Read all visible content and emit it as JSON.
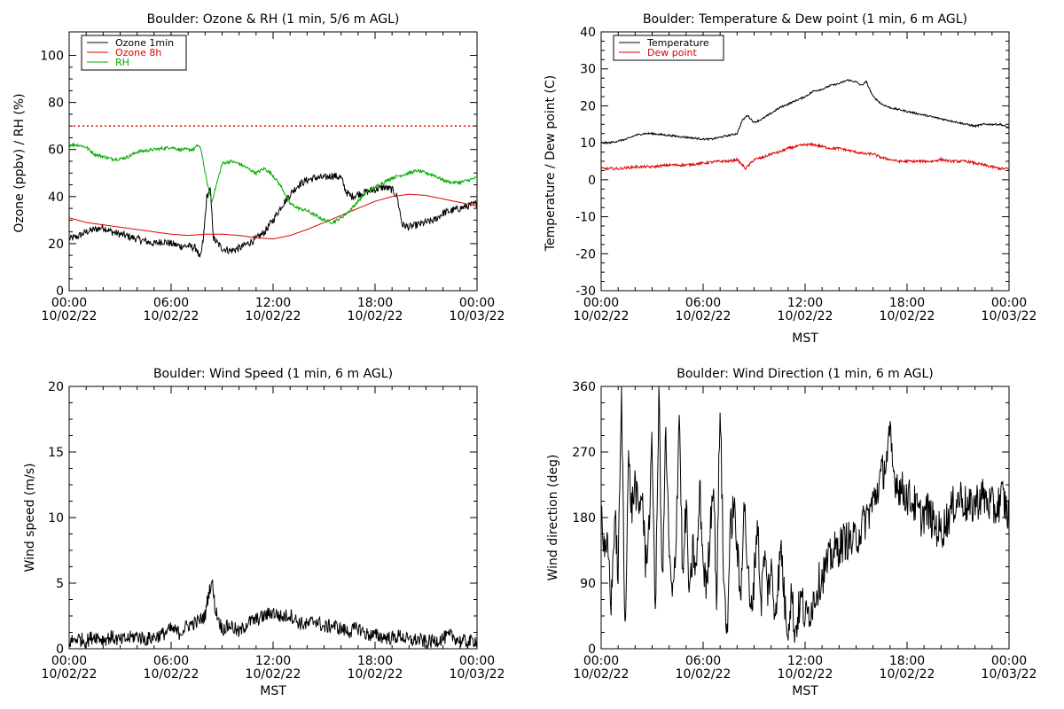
{
  "chart_data": [
    {
      "type": "line",
      "title": "Boulder: Ozone & RH (1 min, 5/6 m AGL)",
      "xlabel": "",
      "ylabel": "Ozone (ppbv) / RH (%)",
      "xlim": [
        "10/02/22 00:00",
        "10/03/22 00:00"
      ],
      "ylim": [
        0,
        110
      ],
      "x_ticks": [
        {
          "time": "00:00",
          "date": "10/02/22"
        },
        {
          "time": "06:00",
          "date": "10/02/22"
        },
        {
          "time": "12:00",
          "date": "10/02/22"
        },
        {
          "time": "18:00",
          "date": "10/02/22"
        },
        {
          "time": "00:00",
          "date": "10/03/22"
        }
      ],
      "y_ticks": [
        0,
        20,
        40,
        60,
        80,
        100
      ],
      "legend_position": "top-left",
      "reference_line": {
        "y": 70,
        "color": "#dd0000",
        "style": "dotted"
      },
      "series": [
        {
          "name": "Ozone 1min",
          "color": "#000000",
          "x_hours": [
            0,
            0.5,
            1,
            1.5,
            2,
            2.5,
            3,
            3.5,
            4,
            4.5,
            5,
            5.5,
            6,
            6.5,
            7,
            7.5,
            7.7,
            7.9,
            8.1,
            8.3,
            8.5,
            9,
            9.5,
            10,
            10.5,
            11,
            11.5,
            12,
            12.5,
            13,
            13.5,
            14,
            14.5,
            15,
            15.5,
            16,
            16.3,
            16.6,
            17,
            17.5,
            18,
            18.5,
            19,
            19.3,
            19.6,
            20,
            20.5,
            21,
            21.5,
            22,
            22.5,
            23,
            23.5,
            24
          ],
          "values": [
            22,
            23,
            25,
            26,
            27,
            25,
            24,
            23,
            22,
            21,
            20,
            21,
            20,
            19,
            19,
            18,
            13,
            22,
            40,
            43,
            22,
            18,
            17,
            18,
            20,
            22,
            25,
            30,
            36,
            41,
            45,
            47,
            48,
            48,
            49,
            48,
            42,
            40,
            41,
            42,
            43,
            44,
            43,
            40,
            28,
            27,
            28,
            29,
            30,
            33,
            34,
            35,
            36,
            37
          ]
        },
        {
          "name": "Ozone 8h",
          "color": "#dd0000",
          "x_hours": [
            0,
            1,
            2,
            3,
            4,
            5,
            6,
            7,
            8,
            9,
            10,
            11,
            12,
            13,
            14,
            15,
            16,
            17,
            18,
            19,
            20,
            21,
            22,
            23,
            24
          ],
          "values": [
            31,
            29,
            28,
            27,
            26,
            25,
            24,
            23.5,
            24,
            24,
            23.5,
            22.5,
            22,
            23.5,
            26,
            29,
            32,
            35,
            38,
            40,
            41,
            40.5,
            39,
            37.5,
            36
          ]
        },
        {
          "name": "RH",
          "color": "#00aa00",
          "x_hours": [
            0,
            0.5,
            1,
            1.5,
            2,
            2.5,
            3,
            3.5,
            4,
            5,
            6,
            6.5,
            7,
            7.3,
            7.6,
            7.8,
            8,
            8.2,
            8.4,
            9,
            9.5,
            10,
            10.5,
            11,
            11.5,
            12,
            12.5,
            13,
            13.5,
            14,
            14.5,
            15,
            15.5,
            16,
            16.5,
            17,
            17.5,
            18,
            18.5,
            19,
            19.5,
            20,
            20.5,
            21,
            21.5,
            22,
            22.5,
            23,
            23.5,
            24
          ],
          "values": [
            62,
            62,
            61,
            58,
            57,
            56,
            56,
            57,
            59,
            60,
            61,
            60,
            60,
            60,
            62,
            59,
            50,
            43,
            38,
            54,
            55,
            54,
            52,
            50,
            52,
            49,
            44,
            37,
            35,
            34,
            32,
            30,
            29,
            31,
            34,
            38,
            42,
            44,
            46,
            48,
            49,
            50,
            51,
            50,
            49,
            47,
            46,
            46,
            47,
            48
          ]
        }
      ]
    },
    {
      "type": "line",
      "title": "Boulder: Temperature & Dew point (1 min, 6 m AGL)",
      "xlabel": "MST",
      "ylabel": "Temperature / Dew point (C)",
      "xlim": [
        "10/02/22 00:00",
        "10/03/22 00:00"
      ],
      "ylim": [
        -30,
        40
      ],
      "x_ticks": [
        {
          "time": "00:00",
          "date": "10/02/22"
        },
        {
          "time": "06:00",
          "date": "10/02/22"
        },
        {
          "time": "12:00",
          "date": "10/02/22"
        },
        {
          "time": "18:00",
          "date": "10/02/22"
        },
        {
          "time": "00:00",
          "date": "10/03/22"
        }
      ],
      "y_ticks": [
        -30,
        -20,
        -10,
        0,
        10,
        20,
        30,
        40
      ],
      "legend_position": "top-left",
      "series": [
        {
          "name": "Temperature",
          "color": "#000000",
          "x_hours": [
            0,
            0.5,
            1,
            1.5,
            2,
            2.5,
            3,
            4,
            5,
            6,
            6.5,
            7,
            7.5,
            8,
            8.3,
            8.6,
            9,
            9.5,
            10,
            10.5,
            11,
            11.5,
            12,
            12.5,
            13,
            13.5,
            14,
            14.5,
            15,
            15.3,
            15.6,
            16,
            16.5,
            17,
            17.5,
            18,
            18.5,
            19,
            19.5,
            20,
            20.5,
            21,
            21.5,
            22,
            22.5,
            23,
            23.5,
            24
          ],
          "values": [
            10,
            10,
            10.5,
            11,
            12,
            12.5,
            12.5,
            12,
            11.5,
            11,
            11,
            11.5,
            12,
            12.5,
            16,
            17.5,
            15.5,
            16.5,
            18,
            19.5,
            20.5,
            21.5,
            22.5,
            24,
            24.5,
            25.5,
            26,
            27,
            26.5,
            25.5,
            26.5,
            22.5,
            20.5,
            19.5,
            19,
            18.5,
            18,
            17.5,
            17,
            16.5,
            16,
            15.5,
            15,
            14.5,
            15,
            15,
            15,
            14
          ]
        },
        {
          "name": "Dew point",
          "color": "#dd0000",
          "x_hours": [
            0,
            1,
            2,
            3,
            4,
            5,
            6,
            7,
            7.5,
            8,
            8.5,
            9,
            9.5,
            10,
            10.5,
            11,
            11.5,
            12,
            12.5,
            13,
            13.5,
            14,
            14.5,
            15,
            15.5,
            16,
            16.5,
            17,
            17.5,
            18,
            18.5,
            19,
            19.5,
            20,
            20.5,
            21,
            21.5,
            22,
            22.5,
            23,
            23.5,
            24
          ],
          "values": [
            3,
            3,
            3.5,
            3.5,
            4,
            4,
            4.5,
            5,
            5,
            5.5,
            3,
            5.5,
            6,
            7,
            7.5,
            8.5,
            9,
            9.5,
            9.5,
            9,
            8.5,
            8.5,
            8,
            7.5,
            7,
            7,
            6,
            5.5,
            5,
            5,
            5,
            5,
            5,
            5.5,
            5,
            5,
            5,
            4.5,
            4,
            3.5,
            3,
            3
          ]
        }
      ]
    },
    {
      "type": "line",
      "title": "Boulder: Wind Speed (1 min, 6 m AGL)",
      "xlabel": "MST",
      "ylabel": "Wind speed (m/s)",
      "xlim": [
        "10/02/22 00:00",
        "10/03/22 00:00"
      ],
      "ylim": [
        0,
        20
      ],
      "x_ticks": [
        {
          "time": "00:00",
          "date": "10/02/22"
        },
        {
          "time": "06:00",
          "date": "10/02/22"
        },
        {
          "time": "12:00",
          "date": "10/02/22"
        },
        {
          "time": "18:00",
          "date": "10/02/22"
        },
        {
          "time": "00:00",
          "date": "10/03/22"
        }
      ],
      "y_ticks": [
        0,
        5,
        10,
        15,
        20
      ],
      "series": [
        {
          "name": "",
          "color": "#000000",
          "x_hours": [
            0,
            0.5,
            1,
            1.5,
            2,
            2.5,
            3,
            3.5,
            4,
            4.5,
            5,
            5.5,
            6,
            6.5,
            7,
            7.5,
            8,
            8.2,
            8.4,
            8.6,
            9,
            9.5,
            10,
            10.5,
            11,
            11.5,
            12,
            12.5,
            13,
            13.5,
            14,
            14.5,
            15,
            15.5,
            16,
            16.5,
            17,
            17.5,
            18,
            18.5,
            19,
            19.5,
            20,
            20.5,
            21,
            21.5,
            22,
            22.5,
            23,
            23.5,
            24
          ],
          "values": [
            0.5,
            0.8,
            0.6,
            1.0,
            0.7,
            0.9,
            0.6,
            0.8,
            1.0,
            0.7,
            0.9,
            1.1,
            1.5,
            1.2,
            1.8,
            2.0,
            2.5,
            4.2,
            5.2,
            3.0,
            1.5,
            1.8,
            1.2,
            2.0,
            2.2,
            2.5,
            2.8,
            2.4,
            2.6,
            2.0,
            1.8,
            2.2,
            1.6,
            1.8,
            1.5,
            1.3,
            1.6,
            1.1,
            1.0,
            0.9,
            0.8,
            1.0,
            0.6,
            0.7,
            0.5,
            0.6,
            0.8,
            1.0,
            0.6,
            0.5,
            0.7
          ]
        }
      ]
    },
    {
      "type": "line",
      "title": "Boulder: Wind Direction (1 min, 6 m AGL)",
      "xlabel": "MST",
      "ylabel": "Wind direction (deg)",
      "xlim": [
        "10/02/22 00:00",
        "10/03/22 00:00"
      ],
      "ylim": [
        0,
        360
      ],
      "x_ticks": [
        {
          "time": "00:00",
          "date": "10/02/22"
        },
        {
          "time": "06:00",
          "date": "10/02/22"
        },
        {
          "time": "12:00",
          "date": "10/02/22"
        },
        {
          "time": "18:00",
          "date": "10/02/22"
        },
        {
          "time": "00:00",
          "date": "10/03/22"
        }
      ],
      "y_ticks": [
        0,
        90,
        180,
        270,
        360
      ],
      "series": [
        {
          "name": "",
          "color": "#000000",
          "x_hours": [
            0,
            0.2,
            0.4,
            0.6,
            0.8,
            1.0,
            1.2,
            1.4,
            1.6,
            1.8,
            2.0,
            2.2,
            2.4,
            2.6,
            2.8,
            3.0,
            3.2,
            3.4,
            3.6,
            3.8,
            4.0,
            4.2,
            4.4,
            4.6,
            4.8,
            5.0,
            5.2,
            5.4,
            5.6,
            5.8,
            6.0,
            6.2,
            6.4,
            6.6,
            6.8,
            7.0,
            7.2,
            7.4,
            7.6,
            7.8,
            8.0,
            8.2,
            8.4,
            8.6,
            8.8,
            9.0,
            9.2,
            9.4,
            9.6,
            9.8,
            10.0,
            10.2,
            10.4,
            10.6,
            10.8,
            11.0,
            11.2,
            11.4,
            11.6,
            11.8,
            12.0,
            12.4,
            12.8,
            13.2,
            13.6,
            14.0,
            14.4,
            14.8,
            15.2,
            15.6,
            16.0,
            16.4,
            16.8,
            17.0,
            17.2,
            17.6,
            18.0,
            18.4,
            18.8,
            19.2,
            19.6,
            20.0,
            20.4,
            20.8,
            21.2,
            21.6,
            22.0,
            22.4,
            22.8,
            23.2,
            23.6,
            24.0
          ],
          "values": [
            200,
            120,
            140,
            60,
            190,
            100,
            350,
            20,
            260,
            190,
            230,
            180,
            220,
            120,
            160,
            280,
            40,
            360,
            80,
            300,
            130,
            60,
            150,
            330,
            90,
            200,
            60,
            140,
            100,
            220,
            120,
            80,
            160,
            240,
            60,
            350,
            100,
            20,
            160,
            200,
            140,
            60,
            210,
            120,
            40,
            100,
            180,
            60,
            130,
            80,
            110,
            50,
            90,
            140,
            60,
            30,
            80,
            20,
            50,
            70,
            40,
            60,
            90,
            110,
            130,
            140,
            150,
            145,
            160,
            180,
            200,
            230,
            260,
            290,
            240,
            220,
            210,
            200,
            180,
            190,
            170,
            160,
            180,
            200,
            210,
            190,
            200,
            210,
            200,
            190,
            210,
            180
          ]
        }
      ]
    }
  ]
}
